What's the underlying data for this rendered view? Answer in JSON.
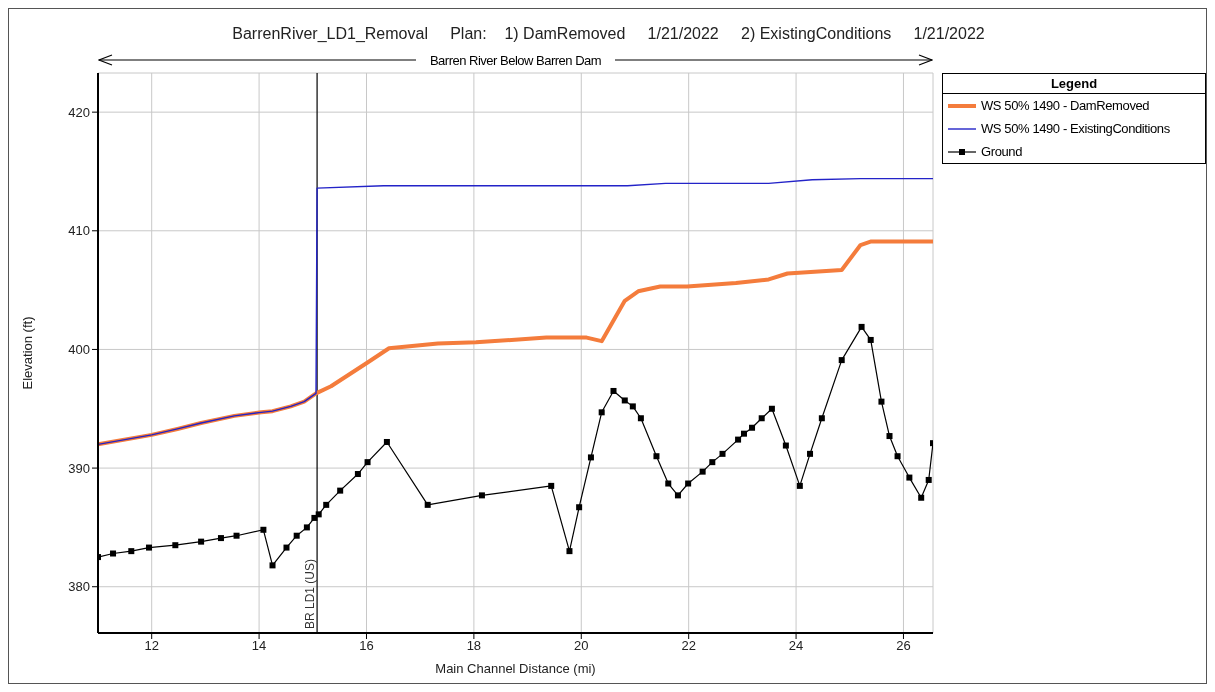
{
  "chart_data": {
    "type": "line",
    "title": "BarrenRiver_LD1_Removal     Plan:    1) DamRemoved     1/21/2022     2) ExistingConditions     1/21/2022",
    "xlabel": "Main Channel Distance (mi)",
    "ylabel": "Elevation (ft)",
    "legend_title": "Legend",
    "legend": "right",
    "grid": true,
    "xlim": [
      11,
      26.55
    ],
    "xticks": [
      12,
      14,
      16,
      18,
      20,
      22,
      24,
      26
    ],
    "ylim": [
      376.1,
      423.3
    ],
    "yticks": [
      380,
      390,
      400,
      410,
      420
    ],
    "annotations": [
      "Barren River Below Barren Dam"
    ],
    "ref_lines": [
      {
        "axis": "x",
        "value": 15.08,
        "label": "BR LD1 (US)",
        "color": "#000000"
      }
    ],
    "series": [
      {
        "name": "WS  50% 1490 - DamRemoved",
        "color": "#f47c3c",
        "marker": "none",
        "x": [
          11,
          12,
          12.48,
          12.92,
          13.54,
          14.04,
          14.25,
          14.59,
          14.84,
          15.06,
          15.34,
          16.02,
          16.42,
          17.33,
          18.04,
          19.35,
          20.1,
          20.38,
          20.81,
          21.06,
          21.47,
          21.97,
          22.88,
          23.49,
          23.84,
          24.85,
          25.2,
          25.4,
          26.55
        ],
        "values": [
          392.0,
          392.8,
          393.3,
          393.8,
          394.4,
          394.7,
          394.8,
          395.2,
          395.6,
          396.3,
          396.9,
          398.9,
          400.1,
          400.5,
          400.6,
          401.0,
          401.0,
          400.7,
          404.1,
          404.9,
          405.3,
          405.3,
          405.6,
          405.9,
          406.4,
          406.7,
          408.8,
          409.1,
          409.1
        ]
      },
      {
        "name": "WS  50% 1490 - ExistingConditions",
        "color": "#2323c8",
        "marker": "none",
        "x": [
          11,
          12,
          12.48,
          12.92,
          13.54,
          14.04,
          14.25,
          14.59,
          14.84,
          15.06,
          15.08,
          16.32,
          20.86,
          21.57,
          23.49,
          24.3,
          25.2,
          26.55
        ],
        "values": [
          392.0,
          392.8,
          393.3,
          393.8,
          394.4,
          394.7,
          394.8,
          395.2,
          395.6,
          396.3,
          413.6,
          413.8,
          413.8,
          414.0,
          414.0,
          414.3,
          414.4,
          414.4
        ]
      },
      {
        "name": "Ground",
        "color": "#000000",
        "marker": "square",
        "x": [
          11,
          11.28,
          11.62,
          11.95,
          12.44,
          12.92,
          13.29,
          13.58,
          14.08,
          14.25,
          14.51,
          14.7,
          14.89,
          15.03,
          15.11,
          15.25,
          15.51,
          15.84,
          16.02,
          16.38,
          17.14,
          18.15,
          19.44,
          19.78,
          19.96,
          20.18,
          20.38,
          20.6,
          20.81,
          20.96,
          21.11,
          21.4,
          21.62,
          21.8,
          21.99,
          22.26,
          22.44,
          22.63,
          22.92,
          23.03,
          23.18,
          23.36,
          23.55,
          23.81,
          24.07,
          24.26,
          24.48,
          24.85,
          25.22,
          25.39,
          25.59,
          25.74,
          25.89,
          26.11,
          26.33,
          26.47,
          26.55
        ],
        "values": [
          382.5,
          382.8,
          383.0,
          383.3,
          383.5,
          383.8,
          384.1,
          384.3,
          384.8,
          381.8,
          383.3,
          384.3,
          385.0,
          385.8,
          386.1,
          386.9,
          388.1,
          389.5,
          390.5,
          392.2,
          386.9,
          387.7,
          388.5,
          383.0,
          386.7,
          390.9,
          394.7,
          396.5,
          395.7,
          395.2,
          394.2,
          391.0,
          388.7,
          387.7,
          388.7,
          389.7,
          390.5,
          391.2,
          392.4,
          392.9,
          393.4,
          394.2,
          395.0,
          391.9,
          388.5,
          391.2,
          394.2,
          399.1,
          401.9,
          400.8,
          395.6,
          392.7,
          391.0,
          389.2,
          387.5,
          389.0,
          392.1
        ]
      }
    ]
  }
}
